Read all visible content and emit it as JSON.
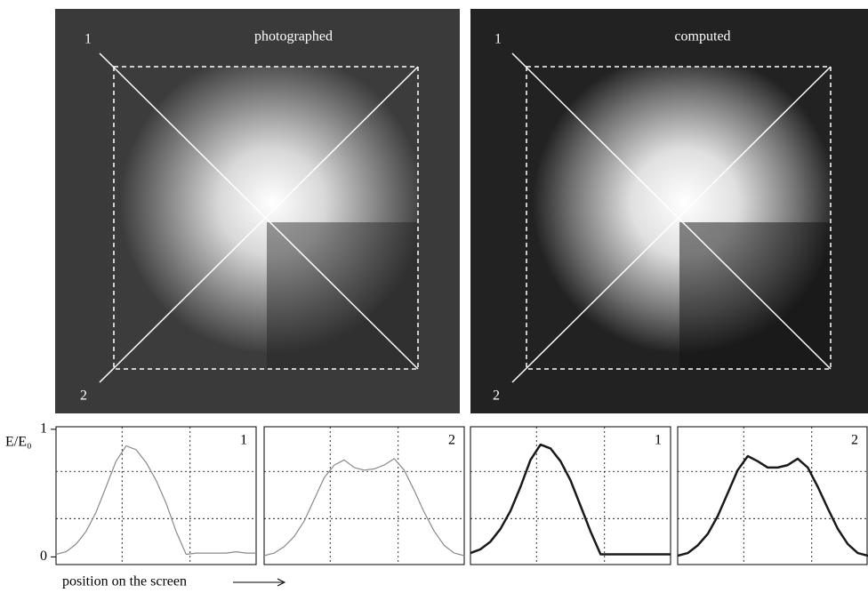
{
  "images": [
    {
      "label": "photographed",
      "line1": "1",
      "line2": "2"
    },
    {
      "label": "computed",
      "line1": "1",
      "line2": "2"
    }
  ],
  "y_axis_label": "E/E₀",
  "x_axis_label": "position on the screen",
  "chart_data": [
    {
      "type": "line",
      "title": "1",
      "color": "#8a8a8a",
      "x": [
        0,
        0.05,
        0.1,
        0.15,
        0.2,
        0.25,
        0.3,
        0.35,
        0.4,
        0.45,
        0.5,
        0.55,
        0.6,
        0.65,
        0.7,
        0.75,
        0.8,
        0.85,
        0.9,
        0.95,
        1
      ],
      "values": [
        0.02,
        0.04,
        0.1,
        0.2,
        0.35,
        0.55,
        0.75,
        0.87,
        0.84,
        0.74,
        0.6,
        0.42,
        0.2,
        0.02,
        0.03,
        0.03,
        0.03,
        0.03,
        0.04,
        0.03,
        0.03
      ],
      "xlim": [
        0,
        1
      ],
      "ylim": [
        -0.06,
        1.02
      ],
      "yticks": [
        0,
        1
      ],
      "xgrid": [
        0.33,
        0.67
      ],
      "ygrid": [
        0.3,
        0.67
      ]
    },
    {
      "type": "line",
      "title": "2",
      "color": "#8a8a8a",
      "x": [
        0,
        0.05,
        0.1,
        0.15,
        0.2,
        0.25,
        0.3,
        0.35,
        0.4,
        0.45,
        0.5,
        0.55,
        0.6,
        0.65,
        0.7,
        0.75,
        0.8,
        0.85,
        0.9,
        0.95,
        1
      ],
      "values": [
        0.01,
        0.03,
        0.08,
        0.16,
        0.28,
        0.45,
        0.62,
        0.72,
        0.76,
        0.7,
        0.68,
        0.69,
        0.72,
        0.77,
        0.68,
        0.52,
        0.35,
        0.2,
        0.09,
        0.03,
        0.01
      ],
      "xlim": [
        0,
        1
      ],
      "ylim": [
        -0.06,
        1.02
      ],
      "xgrid": [
        0.33,
        0.67
      ],
      "ygrid": [
        0.3,
        0.67
      ]
    },
    {
      "type": "line",
      "title": "1",
      "color": "#1a1a1a",
      "x": [
        0,
        0.05,
        0.1,
        0.15,
        0.2,
        0.25,
        0.3,
        0.35,
        0.4,
        0.45,
        0.5,
        0.55,
        0.6,
        0.65,
        0.7,
        0.75,
        0.8,
        0.85,
        0.9,
        0.95,
        1
      ],
      "values": [
        0.03,
        0.06,
        0.12,
        0.22,
        0.36,
        0.55,
        0.76,
        0.88,
        0.85,
        0.75,
        0.6,
        0.4,
        0.2,
        0.02,
        0.02,
        0.02,
        0.02,
        0.02,
        0.02,
        0.02,
        0.02
      ],
      "xlim": [
        0,
        1
      ],
      "ylim": [
        -0.06,
        1.02
      ],
      "xgrid": [
        0.33,
        0.67
      ],
      "ygrid": [
        0.3,
        0.67
      ]
    },
    {
      "type": "line",
      "title": "2",
      "color": "#1a1a1a",
      "x": [
        0,
        0.05,
        0.1,
        0.15,
        0.2,
        0.25,
        0.3,
        0.35,
        0.4,
        0.45,
        0.5,
        0.55,
        0.6,
        0.65,
        0.7,
        0.75,
        0.8,
        0.85,
        0.9,
        0.95,
        1
      ],
      "values": [
        0.01,
        0.03,
        0.09,
        0.18,
        0.32,
        0.5,
        0.68,
        0.79,
        0.75,
        0.7,
        0.7,
        0.72,
        0.77,
        0.7,
        0.55,
        0.38,
        0.22,
        0.1,
        0.03,
        0.01,
        0.01
      ],
      "xlim": [
        0,
        1
      ],
      "ylim": [
        -0.06,
        1.02
      ],
      "xgrid": [
        0.33,
        0.67
      ],
      "ygrid": [
        0.3,
        0.67
      ]
    }
  ]
}
